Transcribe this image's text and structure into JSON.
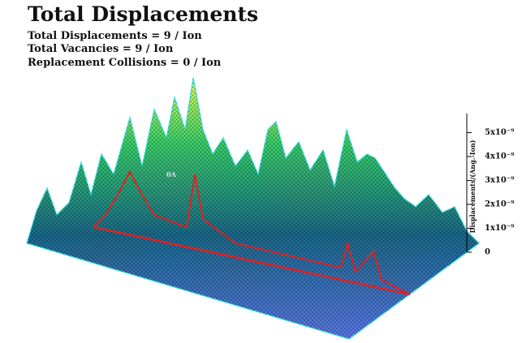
{
  "chart_data": {
    "type": "surface",
    "title": "Total Displacements",
    "stats": [
      "Total Displacements = 9 / Ion",
      "Total Vacancies = 9 / Ion",
      "Replacement Collisions = 0 / Ion"
    ],
    "zlabel": "Displacements/(Ang.-Ion)",
    "origin_label": "0A",
    "zlim": [
      0,
      5.8e-09
    ],
    "zticks": [
      0,
      {
        "value": 1e-09,
        "label": "1x10⁻⁹"
      },
      {
        "value": 2e-09,
        "label": "2x10⁻⁹"
      },
      {
        "value": 3e-09,
        "label": "3x10⁻⁹"
      },
      {
        "value": 4e-09,
        "label": "4x10⁻⁹"
      },
      {
        "value": 5e-09,
        "label": "5x10⁻⁹"
      }
    ]
  }
}
